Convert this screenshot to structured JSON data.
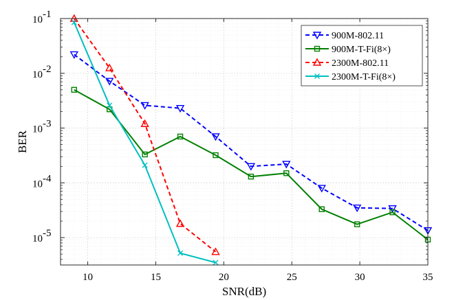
{
  "chart_data": {
    "type": "line",
    "xlabel": "SNR(dB)",
    "ylabel": "BER",
    "xlim": [
      8,
      35
    ],
    "ylim_log10": [
      -5.5,
      -1
    ],
    "x_scale": "linear",
    "y_scale": "log",
    "x_ticks": [
      10,
      15,
      20,
      25,
      30,
      35
    ],
    "x_tick_labels": [
      "10",
      "15",
      "20",
      "25",
      "30",
      "35"
    ],
    "y_ticks": [
      0.1,
      0.01,
      0.001,
      0.0001,
      1e-05
    ],
    "y_tick_labels": [
      {
        "base": "10",
        "exp": "-1"
      },
      {
        "base": "10",
        "exp": "-2"
      },
      {
        "base": "10",
        "exp": "-3"
      },
      {
        "base": "10",
        "exp": "-4"
      },
      {
        "base": "10",
        "exp": "-5"
      }
    ],
    "grid": true,
    "legend_position": "top-right",
    "series": [
      {
        "name": "900M-802.11",
        "color": "#0000ff",
        "dash": "dashed",
        "marker": "triangle-down",
        "x": [
          9,
          11.6,
          14.2,
          16.8,
          19.4,
          22,
          24.6,
          27.2,
          29.8,
          32.4,
          35
        ],
        "y": [
          0.022,
          0.0072,
          0.0026,
          0.0023,
          0.0007,
          0.0002,
          0.00022,
          8e-05,
          3.5e-05,
          3.4e-05,
          1.35e-05
        ]
      },
      {
        "name": "900M-T-Fi(8×)",
        "color": "#008000",
        "dash": "solid",
        "marker": "square",
        "x": [
          9,
          11.6,
          14.2,
          16.8,
          19.4,
          22,
          24.6,
          27.2,
          29.8,
          32.4,
          35
        ],
        "y": [
          0.005,
          0.0022,
          0.00033,
          0.0007,
          0.00032,
          0.00013,
          0.00015,
          3.3e-05,
          1.75e-05,
          2.9e-05,
          9.2e-06
        ]
      },
      {
        "name": "2300M-802.11",
        "color": "#ff0000",
        "dash": "dashed",
        "marker": "triangle-up",
        "x": [
          9,
          11.6,
          14.2,
          16.8,
          19.4
        ],
        "y": [
          0.1,
          0.0125,
          0.0012,
          1.8e-05,
          5.5e-06
        ]
      },
      {
        "name": "2300M-T-Fi(8×)",
        "color": "#00bfbf",
        "dash": "solid",
        "marker": "x",
        "x": [
          9,
          11.6,
          14.2,
          16.8,
          19.4
        ],
        "y": [
          0.085,
          0.0026,
          0.00021,
          5.2e-06,
          3.5e-06
        ]
      }
    ]
  }
}
